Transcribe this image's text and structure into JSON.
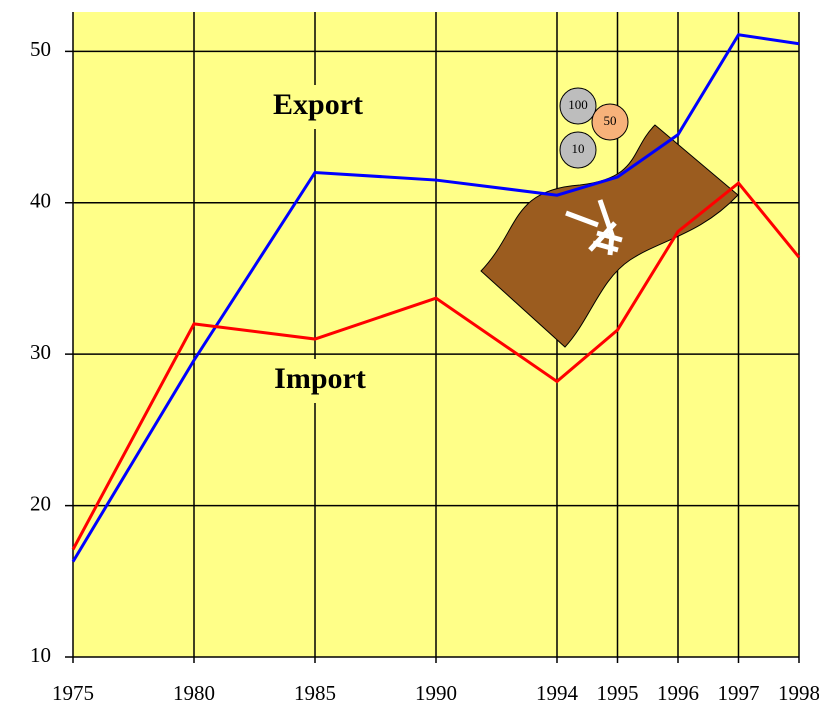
{
  "chart_data": {
    "type": "line",
    "categories": [
      "1975",
      "1980",
      "1985",
      "1990",
      "1994",
      "1995",
      "1996",
      "1997",
      "1998"
    ],
    "series": [
      {
        "name": "Export",
        "color": "#0000ff",
        "values": [
          16.3,
          29.6,
          42.0,
          41.5,
          40.5,
          41.7,
          44.5,
          51.1,
          50.5
        ]
      },
      {
        "name": "Import",
        "color": "#ff0000",
        "values": [
          17.1,
          32.0,
          31.0,
          33.7,
          28.2,
          31.6,
          38.1,
          41.3,
          36.4
        ]
      }
    ],
    "ylim": [
      10,
      52.6
    ],
    "yticks": [
      10,
      20,
      30,
      40,
      50
    ],
    "grid": true,
    "background": "#ffff88",
    "coins": [
      "100",
      "50",
      "10"
    ]
  }
}
